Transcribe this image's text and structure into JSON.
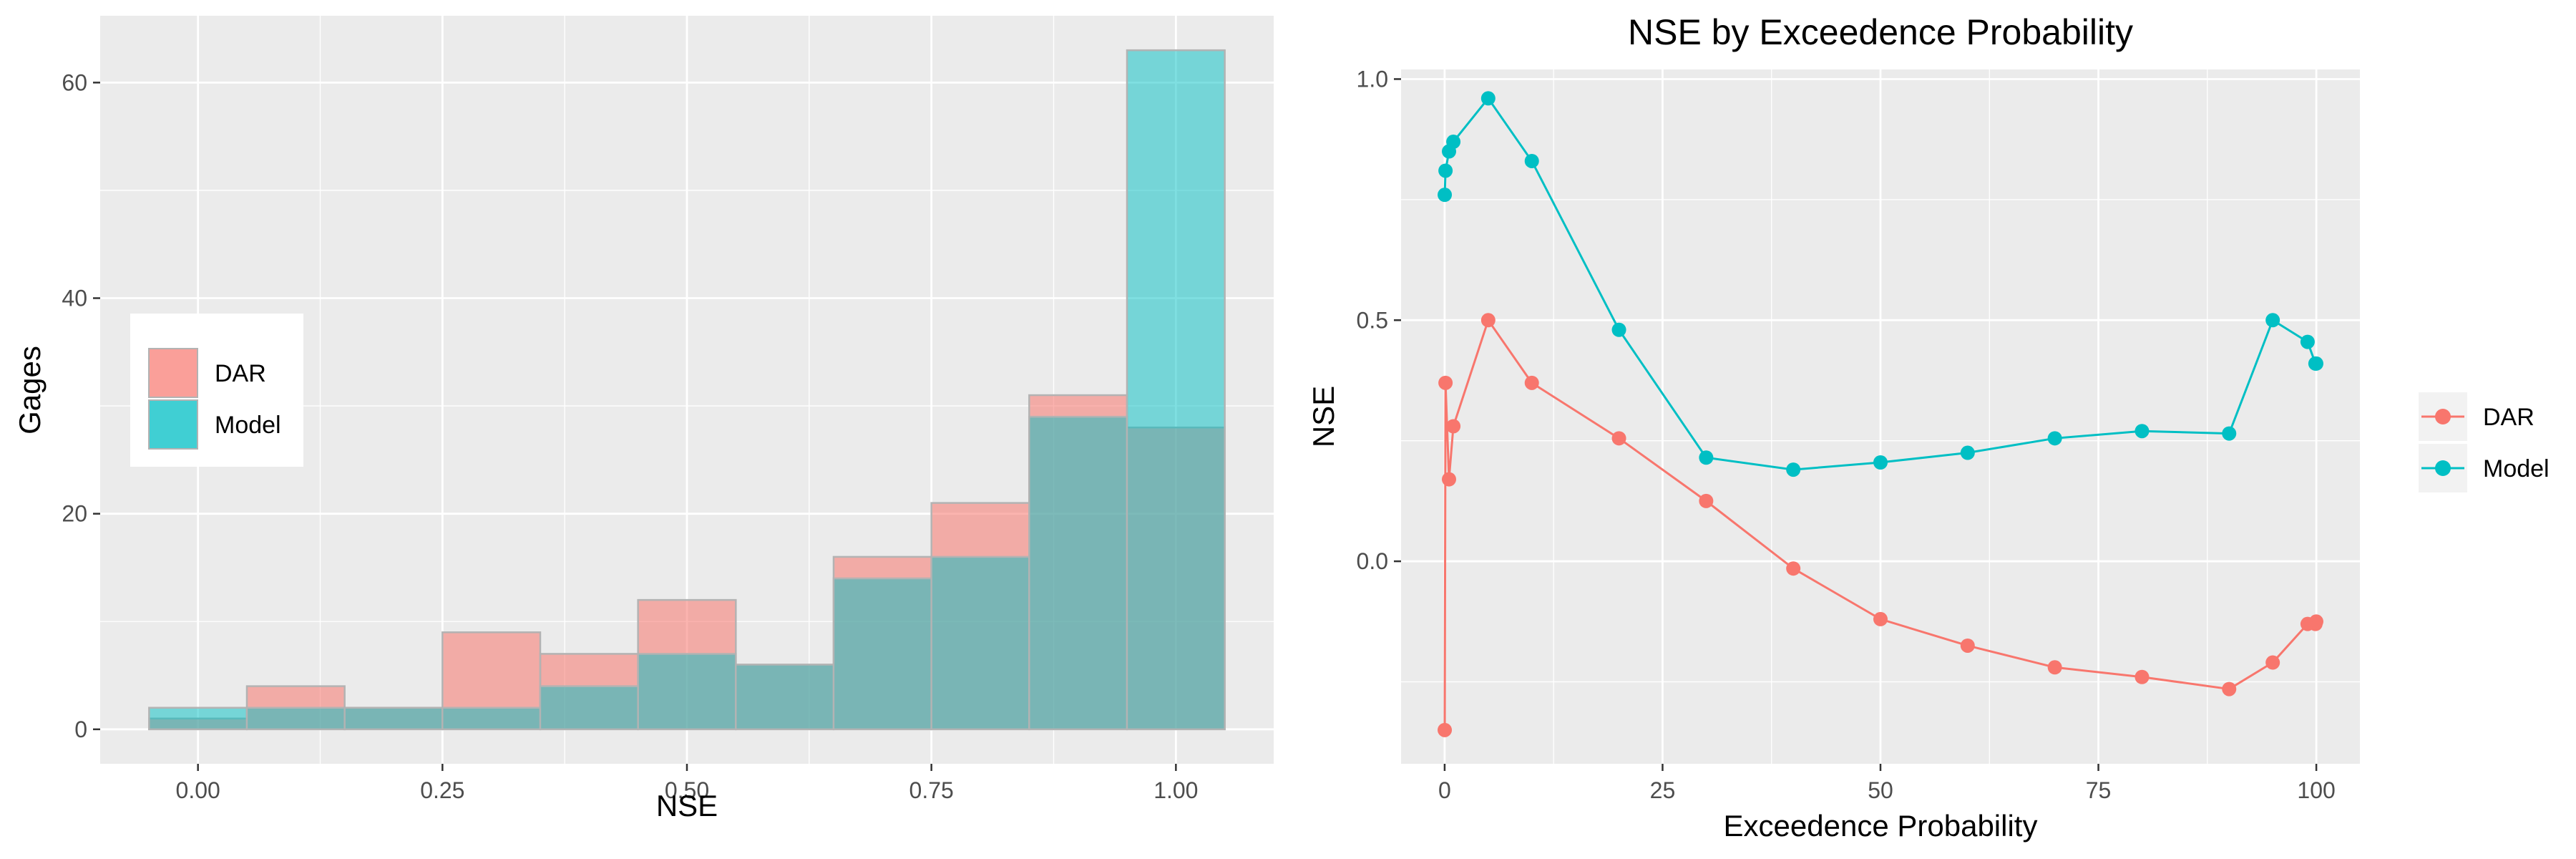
{
  "colors": {
    "dar": "#F8766D",
    "model": "#00BFC4",
    "panel_bg": "#EBEBEB",
    "grid": "#FFFFFF",
    "bar_outline": "#B3B3B3",
    "tick_text": "#4D4D4D"
  },
  "chart_data": [
    {
      "type": "bar",
      "subtype": "overlaid-histogram",
      "title": "",
      "xlabel": "NSE",
      "ylabel": "Gages",
      "xlim": [
        -0.1,
        1.1
      ],
      "ylim": [
        -3.2,
        66.2
      ],
      "xticks": [
        0.0,
        0.25,
        0.5,
        0.75,
        1.0
      ],
      "xtick_labels": [
        "0.00",
        "0.25",
        "0.50",
        "0.75",
        "1.00"
      ],
      "yticks": [
        0,
        20,
        40,
        60
      ],
      "ytick_labels": [
        "0",
        "20",
        "40",
        "60"
      ],
      "bin_width": 0.1,
      "bin_centers": [
        0.0,
        0.1,
        0.2,
        0.3,
        0.4,
        0.5,
        0.6,
        0.7,
        0.8,
        0.9,
        1.0
      ],
      "series": [
        {
          "name": "DAR",
          "color": "#F8766D",
          "values": [
            1,
            4,
            2,
            9,
            7,
            12,
            6,
            16,
            21,
            31,
            28
          ]
        },
        {
          "name": "Model",
          "color": "#00BFC4",
          "values": [
            2,
            2,
            2,
            2,
            4,
            7,
            6,
            14,
            16,
            29,
            63
          ]
        }
      ],
      "legend": {
        "placement": "inside-left",
        "entries": [
          "DAR",
          "Model"
        ]
      },
      "grid": true
    },
    {
      "type": "line",
      "title": "NSE by Exceedence Probability",
      "xlabel": "Exceedence Probability",
      "ylabel": "NSE",
      "xlim": [
        -5,
        105
      ],
      "ylim": [
        -0.42,
        1.02
      ],
      "xticks": [
        0,
        25,
        50,
        75,
        100
      ],
      "xtick_labels": [
        "0",
        "25",
        "50",
        "75",
        "100"
      ],
      "yticks": [
        0.0,
        0.5,
        1.0
      ],
      "ytick_labels": [
        "0.0",
        "0.5",
        "1.0"
      ],
      "x": [
        0.01,
        0.1,
        0.5,
        1,
        5,
        10,
        20,
        30,
        40,
        50,
        60,
        70,
        80,
        90,
        95,
        99,
        99.9,
        99.99
      ],
      "series": [
        {
          "name": "DAR",
          "color": "#F8766D",
          "values": [
            -0.35,
            0.37,
            0.17,
            0.28,
            0.5,
            0.37,
            0.255,
            0.125,
            -0.015,
            -0.12,
            -0.175,
            -0.22,
            -0.24,
            -0.265,
            -0.21,
            -0.13,
            -0.13,
            -0.125
          ]
        },
        {
          "name": "Model",
          "color": "#00BFC4",
          "values": [
            0.76,
            0.81,
            0.85,
            0.87,
            0.96,
            0.83,
            0.48,
            0.215,
            0.19,
            0.205,
            0.225,
            0.255,
            0.27,
            0.265,
            0.5,
            0.455,
            0.41,
            0.41
          ]
        }
      ],
      "legend": {
        "placement": "right",
        "entries": [
          "DAR",
          "Model"
        ]
      },
      "grid": true
    }
  ]
}
